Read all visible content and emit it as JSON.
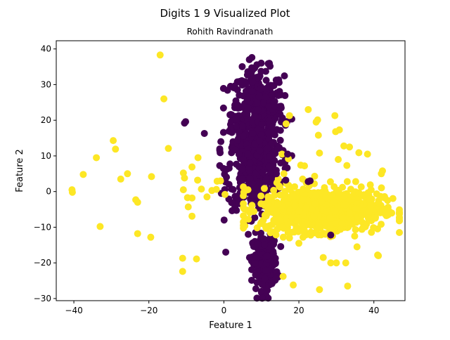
{
  "colors": {
    "class_a": "#440154",
    "class_b": "#fde725",
    "axis": "#000000"
  },
  "chart_data": {
    "type": "scatter",
    "title": "Digits 1 9 Visualized Plot",
    "subtitle": "Rohith Ravindranath",
    "xlabel": "Feature 1",
    "ylabel": "Feature 2",
    "xlim": [
      -44.7,
      48.3
    ],
    "ylim": [
      -30.6,
      42.3
    ],
    "xticks": [
      -40,
      -20,
      0,
      20,
      40
    ],
    "yticks": [
      -30,
      -20,
      -10,
      0,
      10,
      20,
      30,
      40
    ],
    "grid": false,
    "legend": "none",
    "clusters": [
      {
        "color": "#440154",
        "center": [
          9,
          22
        ],
        "spread": [
          3.5,
          6
        ],
        "count": 420
      },
      {
        "color": "#440154",
        "center": [
          8,
          6
        ],
        "spread": [
          3.5,
          5.5
        ],
        "count": 380
      },
      {
        "color": "#440154",
        "center": [
          11,
          -20
        ],
        "spread": [
          1.6,
          3.8
        ],
        "count": 260
      },
      {
        "color": "#fde725",
        "center": [
          26,
          -5
        ],
        "spread": [
          8,
          3
        ],
        "count": 900
      }
    ],
    "series": [
      {
        "color": "#fde725",
        "points": [
          [
            -17,
            38.3
          ],
          [
            -16,
            26
          ],
          [
            -40.5,
            0.5
          ],
          [
            -40.4,
            -0.2
          ],
          [
            -37.5,
            4.8
          ],
          [
            -34,
            9.5
          ],
          [
            -29.5,
            14.3
          ],
          [
            -28.9,
            11.9
          ],
          [
            -27.5,
            3.5
          ],
          [
            -25.7,
            5
          ],
          [
            -23.5,
            -2.3
          ],
          [
            -23,
            -3
          ],
          [
            -23,
            -11.8
          ],
          [
            -19.3,
            4.2
          ],
          [
            -19.5,
            -12.8
          ],
          [
            -14.8,
            12.1
          ],
          [
            -33,
            -9.8
          ],
          [
            -10.8,
            5.2
          ],
          [
            -10.5,
            3.8
          ],
          [
            -10.8,
            0.5
          ],
          [
            -9.7,
            -1.7
          ],
          [
            -9.5,
            -4.3
          ],
          [
            -8.5,
            -1.8
          ],
          [
            -8.5,
            -6.9
          ],
          [
            -8.5,
            6.9
          ],
          [
            -6.9,
            9.5
          ],
          [
            -7,
            3.2
          ],
          [
            -6,
            0.7
          ],
          [
            -4.5,
            -1.5
          ],
          [
            -3.2,
            0.3
          ],
          [
            -1.8,
            2.9
          ],
          [
            -2,
            0.6
          ],
          [
            -0.9,
            3
          ],
          [
            0.3,
            -0.8
          ],
          [
            -11,
            -18.7
          ],
          [
            -11,
            -22.4
          ],
          [
            -7.3,
            -18.9
          ],
          [
            16.6,
            19
          ],
          [
            17.5,
            21.3
          ],
          [
            15.5,
            10.5
          ],
          [
            17.2,
            9.2
          ],
          [
            20.5,
            7.4
          ],
          [
            21.5,
            7.2
          ],
          [
            22.5,
            23
          ],
          [
            25,
            20.1
          ],
          [
            24.6,
            19.5
          ],
          [
            25.2,
            15.8
          ],
          [
            24.2,
            4.3
          ],
          [
            25.5,
            10.8
          ],
          [
            29.6,
            21.3
          ],
          [
            29.8,
            16.8
          ],
          [
            30.8,
            17.3
          ],
          [
            32,
            12.8
          ],
          [
            33.5,
            12.5
          ],
          [
            30.5,
            9
          ],
          [
            32.8,
            7.3
          ],
          [
            36,
            10.9
          ],
          [
            38.3,
            10.5
          ],
          [
            42.3,
            5.8
          ],
          [
            42,
            5
          ],
          [
            43,
            -6.3
          ],
          [
            43.8,
            -6.5
          ],
          [
            41,
            -17.8
          ],
          [
            41.2,
            -18
          ],
          [
            35.5,
            -15.5
          ],
          [
            32.5,
            -20
          ],
          [
            30,
            -20
          ],
          [
            28.5,
            -20
          ],
          [
            26.5,
            -18.5
          ],
          [
            33,
            -26.5
          ],
          [
            25.5,
            -27.5
          ],
          [
            18.5,
            -26.2
          ],
          [
            15.8,
            -23.8
          ],
          [
            20,
            -14.5
          ],
          [
            17.5,
            -13
          ],
          [
            21.5,
            -11
          ],
          [
            23,
            -12
          ],
          [
            14.5,
            3.5
          ],
          [
            16,
            5
          ],
          [
            21,
            3.5
          ],
          [
            22.8,
            2.5
          ]
        ]
      },
      {
        "color": "#440154",
        "points": [
          [
            -10.5,
            19.2
          ],
          [
            -10.2,
            19.6
          ],
          [
            -5.2,
            16.3
          ],
          [
            -1,
            10.9
          ],
          [
            -0.8,
            14
          ],
          [
            17,
            10.5
          ],
          [
            12,
            7
          ],
          [
            16.5,
            3.2
          ],
          [
            14,
            5
          ],
          [
            23,
            3
          ],
          [
            22.5,
            2.8
          ],
          [
            28.5,
            -12.2
          ],
          [
            0.5,
            -17
          ],
          [
            13.5,
            24
          ],
          [
            6.5,
            -12
          ]
        ]
      }
    ]
  }
}
